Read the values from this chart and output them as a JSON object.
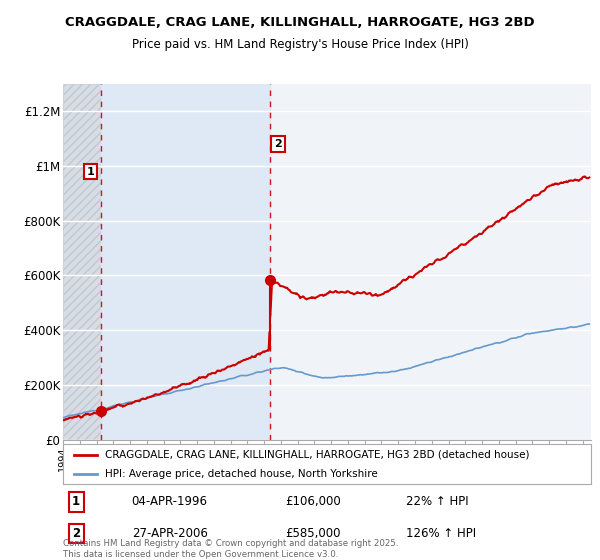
{
  "title": "CRAGGDALE, CRAG LANE, KILLINGHALL, HARROGATE, HG3 2BD",
  "subtitle": "Price paid vs. HM Land Registry's House Price Index (HPI)",
  "legend_line1": "CRAGGDALE, CRAG LANE, KILLINGHALL, HARROGATE, HG3 2BD (detached house)",
  "legend_line2": "HPI: Average price, detached house, North Yorkshire",
  "footnote": "Contains HM Land Registry data © Crown copyright and database right 2025.\nThis data is licensed under the Open Government Licence v3.0.",
  "sale1_label": "1",
  "sale1_date": "04-APR-1996",
  "sale1_price": "£106,000",
  "sale1_hpi": "22% ↑ HPI",
  "sale2_label": "2",
  "sale2_date": "27-APR-2006",
  "sale2_price": "£585,000",
  "sale2_hpi": "126% ↑ HPI",
  "sale1_x": 1996.26,
  "sale1_y": 106000,
  "sale2_x": 2006.33,
  "sale2_y": 585000,
  "house_color": "#cc0000",
  "hpi_color": "#6699cc",
  "background_color": "#ffffff",
  "plot_bg_color": "#f0f4f8",
  "hatch_color": "#dde4ec",
  "shade_color": "#dde8f5",
  "ylim": [
    0,
    1300000
  ],
  "xlim_start": 1994,
  "xlim_end": 2025.5,
  "yticks": [
    0,
    200000,
    400000,
    600000,
    800000,
    1000000,
    1200000
  ],
  "ytick_labels": [
    "£0",
    "£200K",
    "£400K",
    "£600K",
    "£800K",
    "£1M",
    "£1.2M"
  ]
}
